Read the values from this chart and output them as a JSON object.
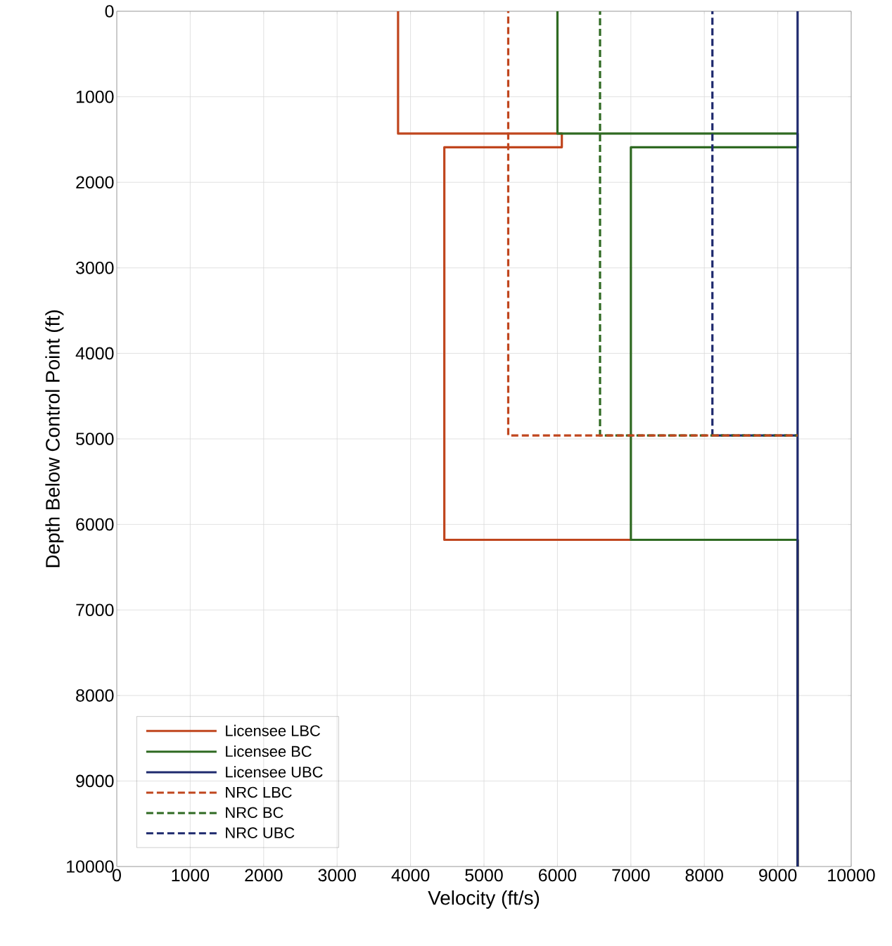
{
  "chart_data": {
    "type": "line",
    "xlabel": "Velocity (ft/s)",
    "ylabel": "Depth Below Control Point (ft)",
    "xlim": [
      0,
      10000
    ],
    "ylim": [
      10000,
      0
    ],
    "xticks": [
      0,
      1000,
      2000,
      3000,
      4000,
      5000,
      6000,
      7000,
      8000,
      9000,
      10000
    ],
    "yticks": [
      0,
      1000,
      2000,
      3000,
      4000,
      5000,
      6000,
      7000,
      8000,
      9000,
      10000
    ],
    "grid": true,
    "legend": "bottom left",
    "series": [
      {
        "name": "Licensee LBC",
        "color": "#c0461e",
        "line_style": "solid",
        "x": [
          3830,
          3830,
          6060,
          6060,
          4460,
          4460,
          9270,
          9270
        ],
        "values": [
          0,
          1430,
          1430,
          1590,
          1590,
          6180,
          6180,
          10000
        ]
      },
      {
        "name": "Licensee BC",
        "color": "#2f6a22",
        "line_style": "solid",
        "x": [
          6000,
          6000,
          9270,
          9270,
          7000,
          7000,
          9270,
          9270
        ],
        "values": [
          0,
          1430,
          1430,
          1590,
          1590,
          6180,
          6180,
          10000
        ]
      },
      {
        "name": "Licensee UBC",
        "color": "#1f2a6e",
        "line_style": "solid",
        "x": [
          9270,
          9270
        ],
        "values": [
          0,
          10000
        ]
      },
      {
        "name": "NRC LBC",
        "color": "#c0461e",
        "line_style": "dashed",
        "x": [
          5330,
          5330,
          9270
        ],
        "values": [
          0,
          4960,
          4960
        ]
      },
      {
        "name": "NRC BC",
        "color": "#2f6a22",
        "line_style": "dashed",
        "x": [
          6580,
          6580,
          9270
        ],
        "values": [
          0,
          4960,
          4960
        ]
      },
      {
        "name": "NRC UBC",
        "color": "#1f2a6e",
        "line_style": "dashed",
        "x": [
          8110,
          8110,
          9270
        ],
        "values": [
          0,
          4960,
          4960
        ]
      }
    ]
  }
}
